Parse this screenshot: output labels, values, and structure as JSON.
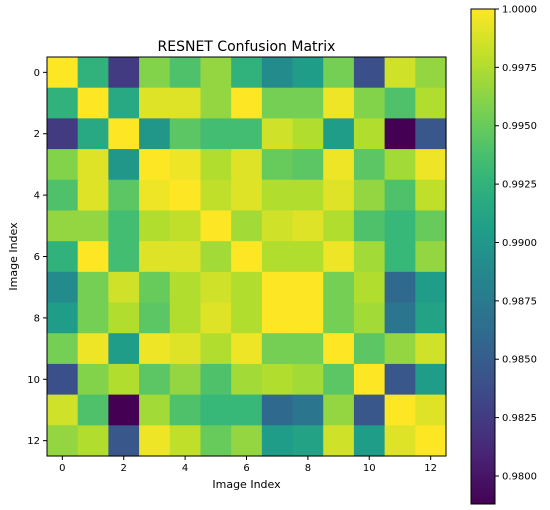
{
  "chart_data": {
    "type": "heatmap",
    "title": "RESNET Confusion Matrix",
    "xlabel": "Image Index",
    "ylabel": "Image Index",
    "x_ticks": [
      0,
      2,
      4,
      6,
      8,
      10,
      12
    ],
    "y_ticks": [
      0,
      2,
      4,
      6,
      8,
      10,
      12
    ],
    "colormap": "viridis",
    "colorbar": {
      "vmin": 0.9788,
      "vmax": 1.0,
      "ticks": [
        "1.0000",
        "0.9975",
        "0.9950",
        "0.9925",
        "0.9900",
        "0.9875",
        "0.9850",
        "0.9825",
        "0.9800"
      ],
      "tick_values": [
        1.0,
        0.9975,
        0.995,
        0.9925,
        0.99,
        0.9875,
        0.985,
        0.9825,
        0.98
      ]
    },
    "matrix": [
      [
        1.0,
        0.9925,
        0.9825,
        0.996,
        0.994,
        0.9965,
        0.9925,
        0.989,
        0.9905,
        0.9955,
        0.984,
        0.9985,
        0.9965
      ],
      [
        0.9925,
        1.0,
        0.9915,
        0.999,
        0.999,
        0.9965,
        1.0,
        0.9955,
        0.9955,
        0.9995,
        0.996,
        0.994,
        0.9975
      ],
      [
        0.9825,
        0.9915,
        1.0,
        0.99,
        0.9945,
        0.9935,
        0.9935,
        0.9985,
        0.9975,
        0.9905,
        0.9975,
        0.9788,
        0.9845
      ],
      [
        0.996,
        0.999,
        0.99,
        1.0,
        0.9995,
        0.9975,
        0.999,
        0.995,
        0.9945,
        0.9995,
        0.9945,
        0.997,
        0.9995
      ],
      [
        0.994,
        0.999,
        0.9945,
        0.9995,
        1.0,
        0.998,
        0.999,
        0.9975,
        0.9975,
        0.999,
        0.9965,
        0.994,
        0.998
      ],
      [
        0.9965,
        0.9965,
        0.9935,
        0.9975,
        0.998,
        1.0,
        0.997,
        0.9985,
        0.999,
        0.9975,
        0.994,
        0.993,
        0.995
      ],
      [
        0.9925,
        1.0,
        0.9935,
        0.999,
        0.999,
        0.997,
        1.0,
        0.9975,
        0.9975,
        0.9995,
        0.997,
        0.993,
        0.9965
      ],
      [
        0.989,
        0.9955,
        0.9985,
        0.995,
        0.9975,
        0.9985,
        0.9975,
        1.0,
        1.0,
        0.9955,
        0.9975,
        0.986,
        0.9905
      ],
      [
        0.9905,
        0.9955,
        0.9975,
        0.9945,
        0.9975,
        0.999,
        0.9975,
        1.0,
        1.0,
        0.9955,
        0.997,
        0.987,
        0.991
      ],
      [
        0.9955,
        0.9995,
        0.9905,
        0.9995,
        0.999,
        0.9975,
        0.9995,
        0.9955,
        0.9955,
        1.0,
        0.9945,
        0.9965,
        0.9985
      ],
      [
        0.984,
        0.996,
        0.9975,
        0.9945,
        0.9965,
        0.994,
        0.997,
        0.9975,
        0.997,
        0.9945,
        1.0,
        0.9845,
        0.9905
      ],
      [
        0.9985,
        0.994,
        0.9788,
        0.997,
        0.994,
        0.993,
        0.993,
        0.986,
        0.987,
        0.9965,
        0.9845,
        1.0,
        0.999
      ],
      [
        0.9965,
        0.9975,
        0.9845,
        0.9995,
        0.998,
        0.995,
        0.9965,
        0.9905,
        0.991,
        0.9985,
        0.9905,
        0.999,
        1.0
      ]
    ]
  }
}
